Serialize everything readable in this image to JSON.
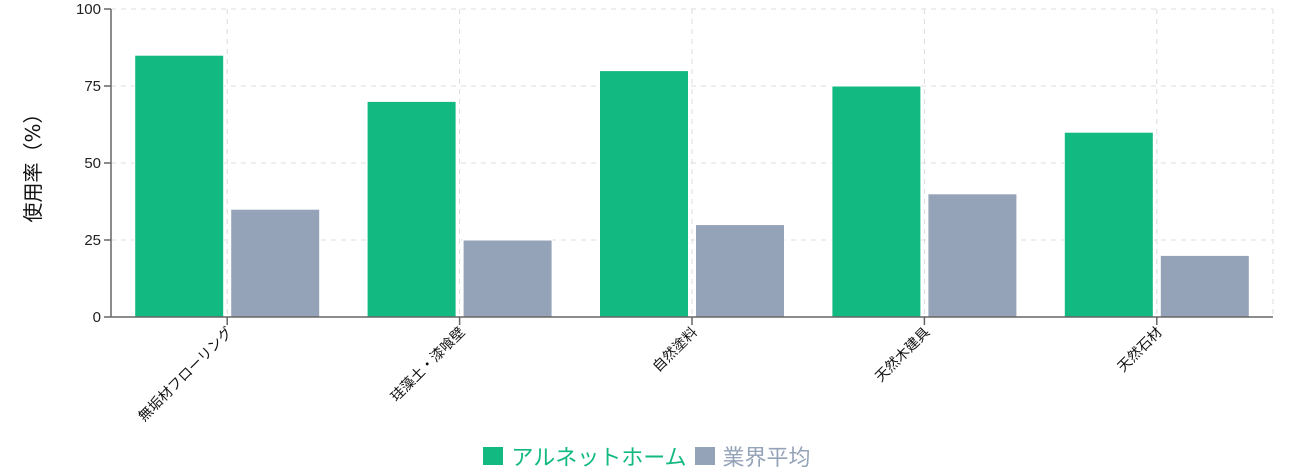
{
  "chart_data": {
    "type": "bar",
    "title": "",
    "xlabel": "",
    "ylabel": "使用率（%）",
    "ylim": [
      0,
      100
    ],
    "yticks": [
      0,
      25,
      50,
      75,
      100
    ],
    "grid": true,
    "legend_position": "bottom",
    "categories": [
      "無垢材フローリング",
      "珪藻土・漆喰壁",
      "自然塗料",
      "天然木建具",
      "天然石材"
    ],
    "series": [
      {
        "name": "アルネットホーム",
        "color": "#12b981",
        "values": [
          85,
          70,
          80,
          75,
          60
        ]
      },
      {
        "name": "業界平均",
        "color": "#94a3b8",
        "values": [
          35,
          25,
          30,
          40,
          20
        ]
      }
    ]
  }
}
